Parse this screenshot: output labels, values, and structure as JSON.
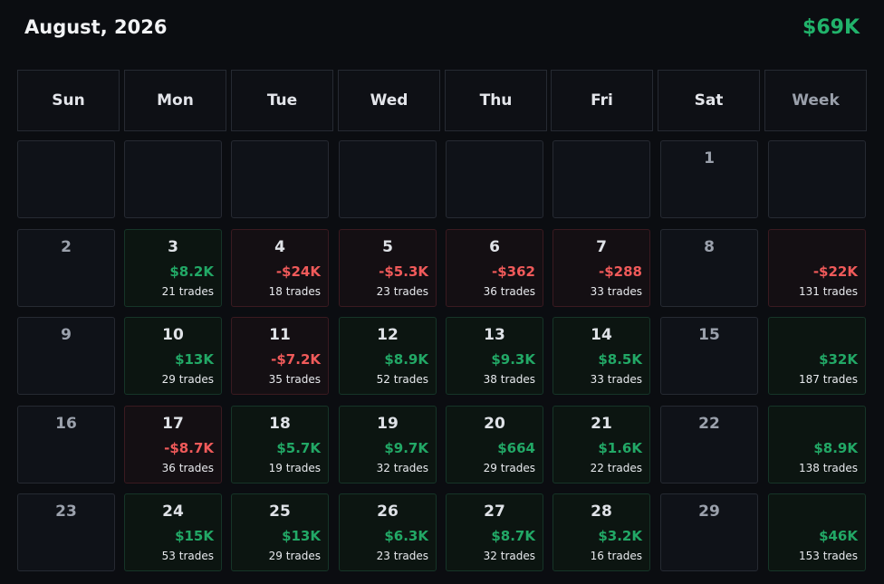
{
  "header": {
    "title": "August, 2026",
    "total": "$69K"
  },
  "weekdays": [
    "Sun",
    "Mon",
    "Tue",
    "Wed",
    "Thu",
    "Fri",
    "Sat",
    "Week"
  ],
  "weeks": [
    [
      {
        "day": "",
        "pnl": "",
        "trades": "",
        "status": "none"
      },
      {
        "day": "",
        "pnl": "",
        "trades": "",
        "status": "none"
      },
      {
        "day": "",
        "pnl": "",
        "trades": "",
        "status": "none"
      },
      {
        "day": "",
        "pnl": "",
        "trades": "",
        "status": "none"
      },
      {
        "day": "",
        "pnl": "",
        "trades": "",
        "status": "none"
      },
      {
        "day": "",
        "pnl": "",
        "trades": "",
        "status": "none"
      },
      {
        "day": "1",
        "pnl": "",
        "trades": "",
        "status": "none"
      },
      {
        "day": "",
        "pnl": "",
        "trades": "",
        "status": "none"
      }
    ],
    [
      {
        "day": "2",
        "pnl": "",
        "trades": "",
        "status": "none"
      },
      {
        "day": "3",
        "pnl": "$8.2K",
        "trades": "21 trades",
        "status": "pos"
      },
      {
        "day": "4",
        "pnl": "-$24K",
        "trades": "18 trades",
        "status": "neg"
      },
      {
        "day": "5",
        "pnl": "-$5.3K",
        "trades": "23 trades",
        "status": "neg"
      },
      {
        "day": "6",
        "pnl": "-$362",
        "trades": "36 trades",
        "status": "neg"
      },
      {
        "day": "7",
        "pnl": "-$288",
        "trades": "33 trades",
        "status": "neg"
      },
      {
        "day": "8",
        "pnl": "",
        "trades": "",
        "status": "none"
      },
      {
        "day": "",
        "pnl": "-$22K",
        "trades": "131 trades",
        "status": "neg"
      }
    ],
    [
      {
        "day": "9",
        "pnl": "",
        "trades": "",
        "status": "none"
      },
      {
        "day": "10",
        "pnl": "$13K",
        "trades": "29 trades",
        "status": "pos"
      },
      {
        "day": "11",
        "pnl": "-$7.2K",
        "trades": "35 trades",
        "status": "neg"
      },
      {
        "day": "12",
        "pnl": "$8.9K",
        "trades": "52 trades",
        "status": "pos"
      },
      {
        "day": "13",
        "pnl": "$9.3K",
        "trades": "38 trades",
        "status": "pos"
      },
      {
        "day": "14",
        "pnl": "$8.5K",
        "trades": "33 trades",
        "status": "pos"
      },
      {
        "day": "15",
        "pnl": "",
        "trades": "",
        "status": "none"
      },
      {
        "day": "",
        "pnl": "$32K",
        "trades": "187 trades",
        "status": "pos"
      }
    ],
    [
      {
        "day": "16",
        "pnl": "",
        "trades": "",
        "status": "none"
      },
      {
        "day": "17",
        "pnl": "-$8.7K",
        "trades": "36 trades",
        "status": "neg"
      },
      {
        "day": "18",
        "pnl": "$5.7K",
        "trades": "19 trades",
        "status": "pos"
      },
      {
        "day": "19",
        "pnl": "$9.7K",
        "trades": "32 trades",
        "status": "pos"
      },
      {
        "day": "20",
        "pnl": "$664",
        "trades": "29 trades",
        "status": "pos"
      },
      {
        "day": "21",
        "pnl": "$1.6K",
        "trades": "22 trades",
        "status": "pos"
      },
      {
        "day": "22",
        "pnl": "",
        "trades": "",
        "status": "none"
      },
      {
        "day": "",
        "pnl": "$8.9K",
        "trades": "138 trades",
        "status": "pos"
      }
    ],
    [
      {
        "day": "23",
        "pnl": "",
        "trades": "",
        "status": "none"
      },
      {
        "day": "24",
        "pnl": "$15K",
        "trades": "53 trades",
        "status": "pos"
      },
      {
        "day": "25",
        "pnl": "$13K",
        "trades": "29 trades",
        "status": "pos"
      },
      {
        "day": "26",
        "pnl": "$6.3K",
        "trades": "23 trades",
        "status": "pos"
      },
      {
        "day": "27",
        "pnl": "$8.7K",
        "trades": "32 trades",
        "status": "pos"
      },
      {
        "day": "28",
        "pnl": "$3.2K",
        "trades": "16 trades",
        "status": "pos"
      },
      {
        "day": "29",
        "pnl": "",
        "trades": "",
        "status": "none"
      },
      {
        "day": "",
        "pnl": "$46K",
        "trades": "153 trades",
        "status": "pos"
      }
    ]
  ]
}
